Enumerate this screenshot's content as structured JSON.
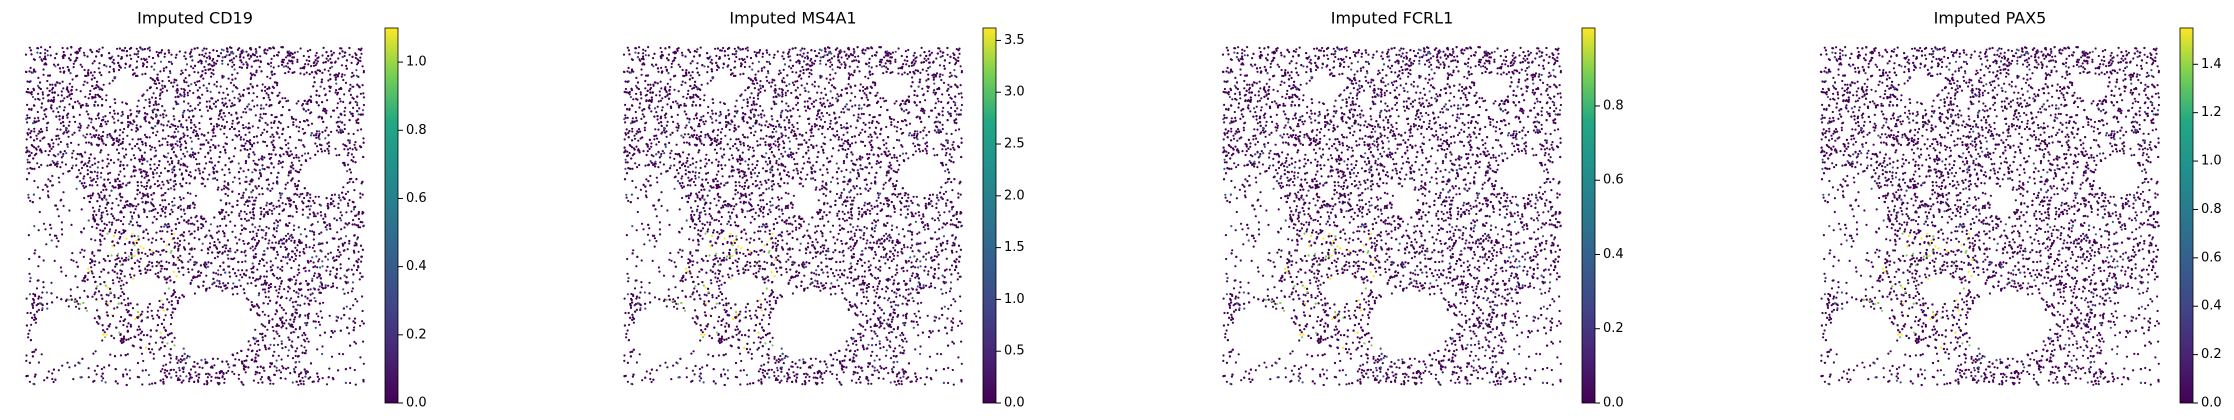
{
  "chart_data": [
    {
      "type": "spatial",
      "title": "Imputed CD19",
      "colormap": "viridis",
      "clim": [
        0,
        1.1
      ],
      "cticks": [
        {
          "value": 0,
          "label": "0.0"
        },
        {
          "value": 0.2,
          "label": "0.2"
        },
        {
          "value": 0.4,
          "label": "0.4"
        },
        {
          "value": 0.6,
          "label": "0.6"
        },
        {
          "value": 0.8,
          "label": "0.8"
        },
        {
          "value": 1,
          "label": "1.0"
        }
      ]
    },
    {
      "type": "spatial",
      "title": "Imputed MS4A1",
      "colormap": "viridis",
      "clim": [
        0,
        3.62
      ],
      "cticks": [
        {
          "value": 0,
          "label": "0.0"
        },
        {
          "value": 0.5,
          "label": "0.5"
        },
        {
          "value": 1,
          "label": "1.0"
        },
        {
          "value": 1.5,
          "label": "1.5"
        },
        {
          "value": 2,
          "label": "2.0"
        },
        {
          "value": 2.5,
          "label": "2.5"
        },
        {
          "value": 3,
          "label": "3.0"
        },
        {
          "value": 3.5,
          "label": "3.5"
        }
      ]
    },
    {
      "type": "spatial",
      "title": "Imputed FCRL1",
      "colormap": "viridis",
      "clim": [
        0,
        1.01
      ],
      "cticks": [
        {
          "value": 0,
          "label": "0.0"
        },
        {
          "value": 0.2,
          "label": "0.2"
        },
        {
          "value": 0.4,
          "label": "0.4"
        },
        {
          "value": 0.6,
          "label": "0.6"
        },
        {
          "value": 0.8,
          "label": "0.8"
        }
      ]
    },
    {
      "type": "spatial",
      "title": "Imputed PAX5",
      "colormap": "viridis",
      "clim": [
        0,
        1.55
      ],
      "cticks": [
        {
          "value": 0,
          "label": "0.0"
        },
        {
          "value": 0.2,
          "label": "0.2"
        },
        {
          "value": 0.4,
          "label": "0.4"
        },
        {
          "value": 0.6,
          "label": "0.6"
        },
        {
          "value": 0.8,
          "label": "0.8"
        },
        {
          "value": 1,
          "label": "1.0"
        },
        {
          "value": 1.2,
          "label": "1.2"
        },
        {
          "value": 1.4,
          "label": "1.4"
        }
      ]
    }
  ]
}
